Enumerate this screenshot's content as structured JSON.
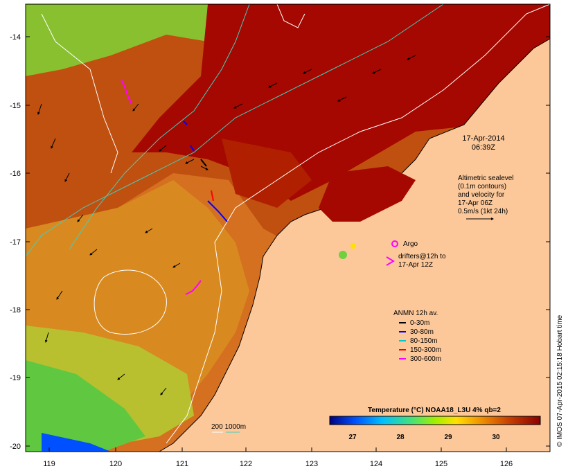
{
  "map": {
    "timestamp_date": "17-Apr-2014",
    "timestamp_time": "06:39Z",
    "altimetry_lines": [
      "Altimetric sealevel",
      "(0.1m contours)",
      "and velocity for",
      "17-Apr 06Z",
      "0.5m/s (1kt 24h)"
    ],
    "argo_label": "Argo",
    "drifters_lines": [
      "drifters@12h to",
      "17-Apr 12Z"
    ],
    "anmn_title": "ANMN 12h av.",
    "anmn_legend": [
      {
        "label": "0-30m",
        "color": "#000000"
      },
      {
        "label": "30-80m",
        "color": "#0000ff"
      },
      {
        "label": "80-150m",
        "color": "#00c8c8"
      },
      {
        "label": "150-300m",
        "color": "#ff0000"
      },
      {
        "label": "300-600m",
        "color": "#ff00ff"
      }
    ],
    "colorbar_title": "Temperature (°C) NOAA18_L3U 4% qb=2",
    "colorbar_ticks": [
      "27",
      "28",
      "29",
      "30"
    ],
    "isobath_label": "200  1000m",
    "credit": "© IMOS 07-Apr-2015 02:15:18 Hobart time",
    "x_ticks": [
      "119",
      "120",
      "121",
      "122",
      "123",
      "124",
      "125",
      "126"
    ],
    "y_ticks": [
      "-14",
      "-15",
      "-16",
      "-17",
      "-18",
      "-19",
      "-20"
    ],
    "colors": {
      "land": "#fcc89a",
      "hot": "#a80a00",
      "warm": "#c85a10",
      "mid": "#e0a020",
      "cool": "#70d040",
      "argo": "#ff00ff",
      "isobath200": "#ffffff",
      "isobath1000": "#40d0c0"
    }
  }
}
